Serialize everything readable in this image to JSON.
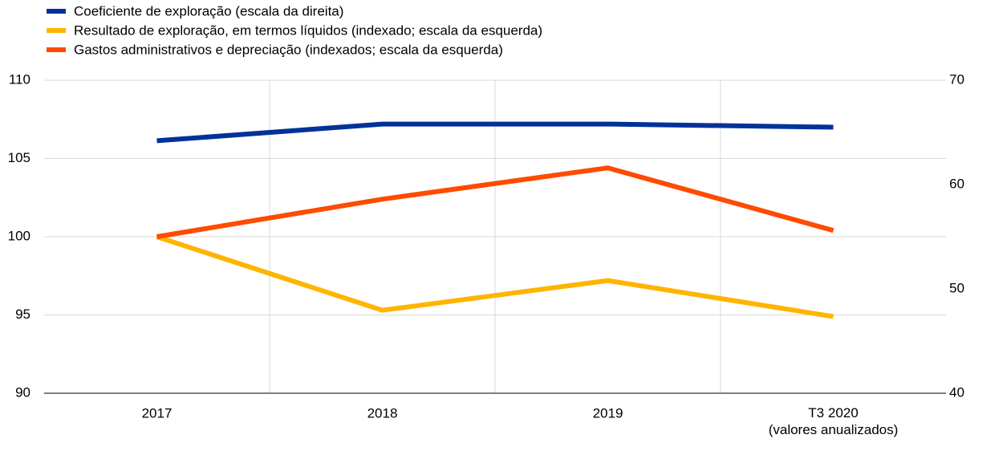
{
  "chart_data": {
    "type": "line",
    "categories": [
      "2017",
      "2018",
      "2019",
      "T3 2020\n(valores anualizados)"
    ],
    "series": [
      {
        "name": "Coeficiente de exploração (escala da direita)",
        "color": "#003299",
        "axis": "y2",
        "values": [
          64.2,
          65.8,
          65.8,
          65.5
        ]
      },
      {
        "name": "Resultado de exploração, em termos líquidos (indexado; escala da esquerda)",
        "color": "#ffb400",
        "values": [
          100,
          95.3,
          97.2,
          94.9
        ]
      },
      {
        "name": "Gastos administrativos e depreciação (indexados; escala da esquerda)",
        "color": "#ff4b00",
        "values": [
          100,
          102.4,
          104.4,
          100.4
        ]
      }
    ],
    "ylim": [
      90,
      110
    ],
    "yticks": [
      90,
      95,
      100,
      105,
      110
    ],
    "y2lim": [
      40,
      70
    ],
    "y2ticks": [
      40,
      50,
      60,
      70
    ],
    "grid": true
  }
}
